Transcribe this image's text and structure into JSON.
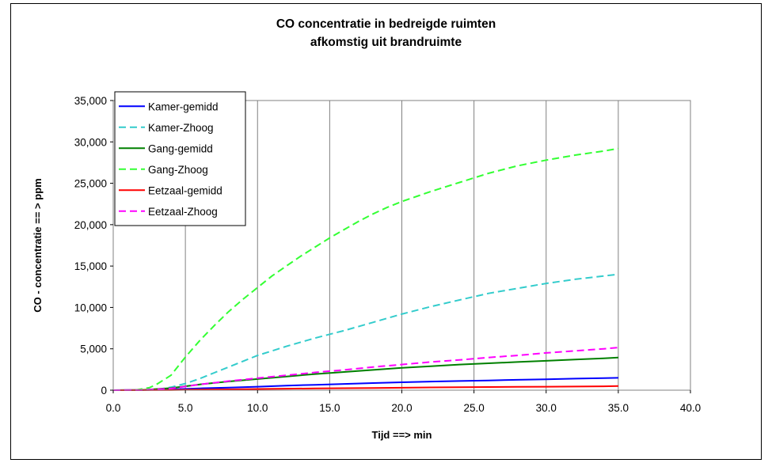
{
  "chart_data": {
    "type": "line",
    "title": [
      "CO concentratie in bedreigde ruimten",
      "afkomstig uit brandruimte"
    ],
    "xlabel": "Tijd  ==> min",
    "ylabel": "CO - concentratie  == > ppm",
    "xlim": [
      0,
      40
    ],
    "ylim": [
      0,
      35000
    ],
    "xticks": [
      "0.0",
      "5.0",
      "10.0",
      "15.0",
      "20.0",
      "25.0",
      "30.0",
      "35.0",
      "40.0"
    ],
    "yticks": [
      "0",
      "5,000",
      "10,000",
      "15,000",
      "20,000",
      "25,000",
      "30,000",
      "35,000"
    ],
    "grid": "vertical",
    "legend_position": "top-left",
    "series": [
      {
        "name": "Kamer-gemidd",
        "color": "#0000ff",
        "dash": "solid",
        "x": [
          0,
          2,
          4,
          6,
          8,
          10,
          12,
          14,
          16,
          18,
          20,
          22,
          24,
          26,
          28,
          30,
          32,
          34,
          35
        ],
        "y": [
          0,
          20,
          100,
          220,
          320,
          420,
          550,
          650,
          760,
          860,
          960,
          1040,
          1110,
          1180,
          1250,
          1320,
          1400,
          1460,
          1490
        ]
      },
      {
        "name": "Kamer-Zhoog",
        "color": "#33cccc",
        "dash": "dashed",
        "x": [
          0,
          2,
          3,
          4,
          5,
          6,
          7,
          8,
          9,
          10,
          12,
          14,
          16,
          18,
          20,
          22,
          24,
          26,
          28,
          30,
          32,
          34,
          35
        ],
        "y": [
          0,
          0,
          80,
          350,
          800,
          1400,
          2100,
          2800,
          3500,
          4200,
          5300,
          6300,
          7200,
          8200,
          9200,
          10100,
          10900,
          11700,
          12300,
          12900,
          13400,
          13800,
          14000
        ]
      },
      {
        "name": "Gang-gemidd",
        "color": "#008000",
        "dash": "solid",
        "x": [
          0,
          2,
          4,
          6,
          8,
          10,
          12,
          14,
          16,
          18,
          20,
          22,
          24,
          26,
          28,
          30,
          32,
          34,
          35
        ],
        "y": [
          0,
          20,
          250,
          700,
          1050,
          1350,
          1650,
          1950,
          2200,
          2450,
          2700,
          2900,
          3100,
          3250,
          3400,
          3550,
          3700,
          3850,
          3950
        ]
      },
      {
        "name": "Gang-Zhoog",
        "color": "#33ff33",
        "dash": "dashed",
        "x": [
          0,
          1.5,
          2.5,
          3,
          4,
          5,
          6,
          7,
          8,
          9,
          10,
          11,
          12,
          13,
          14,
          15,
          16,
          17,
          18,
          19,
          20,
          22,
          24,
          26,
          28,
          30,
          32,
          34,
          35
        ],
        "y": [
          0,
          0,
          300,
          700,
          1800,
          4000,
          6000,
          7800,
          9500,
          11000,
          12400,
          13800,
          15000,
          16200,
          17300,
          18400,
          19400,
          20400,
          21300,
          22100,
          22800,
          24000,
          25100,
          26200,
          27100,
          27800,
          28400,
          28900,
          29200
        ]
      },
      {
        "name": "Eetzaal-gemidd",
        "color": "#ff0000",
        "dash": "solid",
        "x": [
          0,
          2,
          4,
          6,
          8,
          10,
          12,
          14,
          16,
          18,
          20,
          22,
          24,
          26,
          28,
          30,
          32,
          34,
          35
        ],
        "y": [
          0,
          5,
          30,
          70,
          100,
          140,
          180,
          210,
          240,
          270,
          300,
          330,
          360,
          380,
          400,
          420,
          440,
          470,
          500
        ]
      },
      {
        "name": "Eetzaal-Zhoog",
        "color": "#ff00ff",
        "dash": "dashed",
        "x": [
          0,
          2,
          4,
          6,
          8,
          10,
          12,
          14,
          16,
          18,
          20,
          22,
          24,
          26,
          28,
          30,
          32,
          34,
          35
        ],
        "y": [
          0,
          20,
          200,
          700,
          1100,
          1450,
          1800,
          2150,
          2450,
          2800,
          3100,
          3400,
          3650,
          3950,
          4200,
          4500,
          4750,
          5000,
          5150
        ]
      }
    ]
  }
}
